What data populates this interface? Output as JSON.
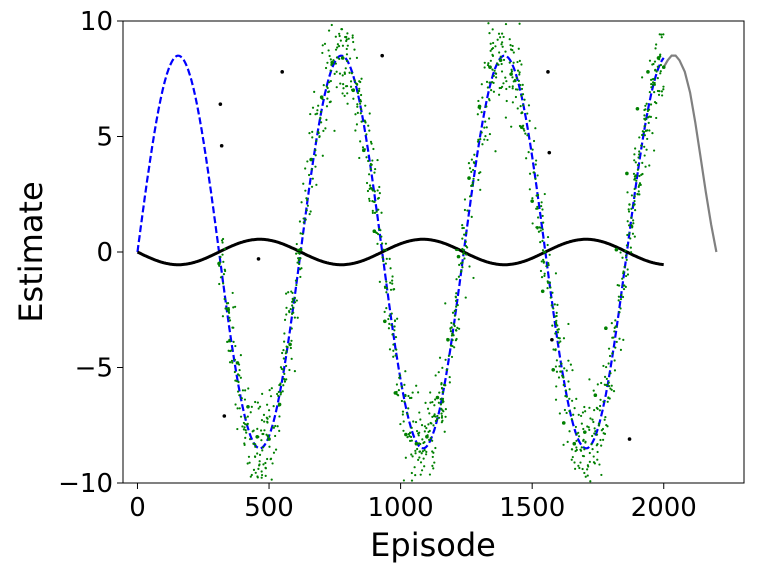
{
  "chart_data": {
    "type": "line",
    "title": "",
    "xlabel": "Episode",
    "ylabel": "Estimate",
    "xlim": [
      -55,
      2305
    ],
    "ylim": [
      -10,
      10
    ],
    "x_ticks": [
      0,
      500,
      1000,
      1500,
      2000
    ],
    "x_tick_labels": [
      "0",
      "500",
      "1000",
      "1500",
      "2000"
    ],
    "y_ticks": [
      -10,
      -5,
      0,
      5,
      10
    ],
    "y_tick_labels": [
      "−10",
      "−5",
      "0",
      "5",
      "10"
    ],
    "grid": false,
    "legend": "none",
    "series": [
      {
        "style": "dashed line",
        "color": "#0000ff",
        "note_formula": "y = 8.5*sin(2*pi*x/620)",
        "x": [
          0,
          50,
          100,
          155,
          200,
          250,
          310,
          360,
          400,
          465,
          520,
          560,
          620,
          670,
          720,
          775,
          830,
          880,
          930,
          985,
          1040,
          1085,
          1140,
          1190,
          1240,
          1300,
          1350,
          1395,
          1450,
          1500,
          1550,
          1600,
          1660,
          1705,
          1760,
          1810,
          1860,
          1920,
          1970,
          2000
        ],
        "y": [
          0,
          4.3,
          7.6,
          8.5,
          7.8,
          4.8,
          0,
          -4.2,
          -6.9,
          -8.5,
          -7.0,
          -4.7,
          0,
          4.3,
          7.6,
          8.5,
          7.4,
          4.6,
          0.9,
          -4.3,
          -7.6,
          -8.5,
          -7.6,
          -5.3,
          -1.5,
          3.7,
          7.0,
          8.4,
          7.9,
          5.3,
          1.0,
          -3.7,
          -7.6,
          -8.5,
          -7.3,
          -4.3,
          -0.2,
          4.8,
          7.8,
          8.4
        ]
      },
      {
        "style": "solid line",
        "color": "#000000",
        "note_formula": "y = -0.55*sin(2*pi*x/620)",
        "x": [
          0,
          80,
          155,
          230,
          310,
          390,
          465,
          540,
          620,
          700,
          775,
          850,
          930,
          1010,
          1085,
          1160,
          1240,
          1320,
          1395,
          1470,
          1550,
          1630,
          1705,
          1780,
          1860,
          1940,
          2000
        ],
        "y": [
          0,
          -0.44,
          -0.55,
          -0.43,
          0,
          0.43,
          0.55,
          0.42,
          0,
          -0.43,
          -0.55,
          -0.44,
          -0.05,
          0.42,
          0.55,
          0.45,
          0.09,
          -0.36,
          -0.55,
          -0.49,
          -0.15,
          0.32,
          0.54,
          0.49,
          0.2,
          -0.28,
          -0.5
        ]
      },
      {
        "style": "solid line",
        "color": "#808080",
        "note_formula": "forecast continuation of the sine",
        "x": [
          2000,
          2015,
          2030,
          2045,
          2060,
          2080,
          2100,
          2120,
          2140,
          2160,
          2180,
          2200
        ],
        "y": [
          8.0,
          8.3,
          8.5,
          8.5,
          8.3,
          7.8,
          6.9,
          5.6,
          4.1,
          2.6,
          1.2,
          0
        ]
      },
      {
        "style": "scatter",
        "color": "#008000",
        "marker_size": 1.8,
        "note_formula": "noisy samples around the blue curve, x in [310, 2000], 1300 points",
        "x": [
          310,
          345,
          380,
          420,
          455,
          500,
          540,
          580,
          620,
          660,
          700,
          740,
          780,
          820,
          860,
          900,
          940,
          980,
          1020,
          1060,
          1100,
          1140,
          1180,
          1220,
          1260,
          1300,
          1340,
          1380,
          1420,
          1460,
          1500,
          1540,
          1580,
          1620,
          1660,
          1700,
          1740,
          1780,
          1820,
          1860,
          1900,
          1940,
          1980,
          2000
        ],
        "y": [
          -0.5,
          -2.5,
          -4.8,
          -6.7,
          -8.0,
          -8.1,
          -6.6,
          -4.0,
          0.1,
          4.0,
          6.7,
          8.2,
          8.4,
          7.0,
          4.4,
          0.9,
          -3.0,
          -6.1,
          -7.9,
          -8.3,
          -8.0,
          -6.3,
          -3.8,
          -0.2,
          3.2,
          6.3,
          8.0,
          8.3,
          7.7,
          5.4,
          2.2,
          -1.7,
          -5.1,
          -7.4,
          -8.3,
          -7.8,
          -6.2,
          -3.3,
          0.1,
          3.4,
          6.2,
          7.8,
          8.4,
          8.0
        ]
      },
      {
        "style": "scatter",
        "color": "#000000",
        "note": "isolated outlier points",
        "x": [
          315,
          320,
          330,
          460,
          550,
          930,
          1560,
          1565,
          1575,
          1870
        ],
        "y": [
          6.4,
          4.6,
          -7.1,
          -0.3,
          7.8,
          8.5,
          7.8,
          4.3,
          -3.8,
          -8.1
        ]
      }
    ]
  }
}
